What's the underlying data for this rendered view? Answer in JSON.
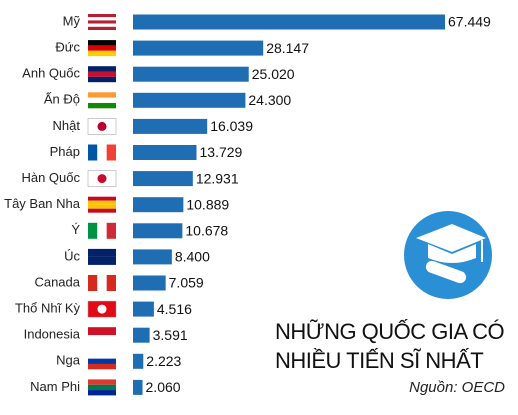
{
  "chart_data": {
    "type": "hbar",
    "title": [
      "NHỮNG QUỐC GIA CÓ",
      "NHIỀU TIẾN SĨ NHẤT"
    ],
    "source": "Nguồn: OECD",
    "color": "#1f6db3",
    "categories": [
      "Mỹ",
      "Đức",
      "Anh Quốc",
      "Ấn Độ",
      "Nhật",
      "Pháp",
      "Hàn Quốc",
      "Tây Ban Nha",
      "Ý",
      "Úc",
      "Canada",
      "Thổ Nhĩ Kỳ",
      "Indonesia",
      "Nga",
      "Nam Phi"
    ],
    "values": [
      67449,
      28147,
      25020,
      24300,
      16039,
      13729,
      12931,
      10889,
      10678,
      8400,
      7059,
      4516,
      3591,
      2223,
      2060
    ],
    "value_labels": [
      "67.449",
      "28.147",
      "25.020",
      "24.300",
      "16.039",
      "13.729",
      "12.931",
      "10.889",
      "10.678",
      "8.400",
      "7.059",
      "4.516",
      "3.591",
      "2.223",
      "2.060"
    ]
  }
}
